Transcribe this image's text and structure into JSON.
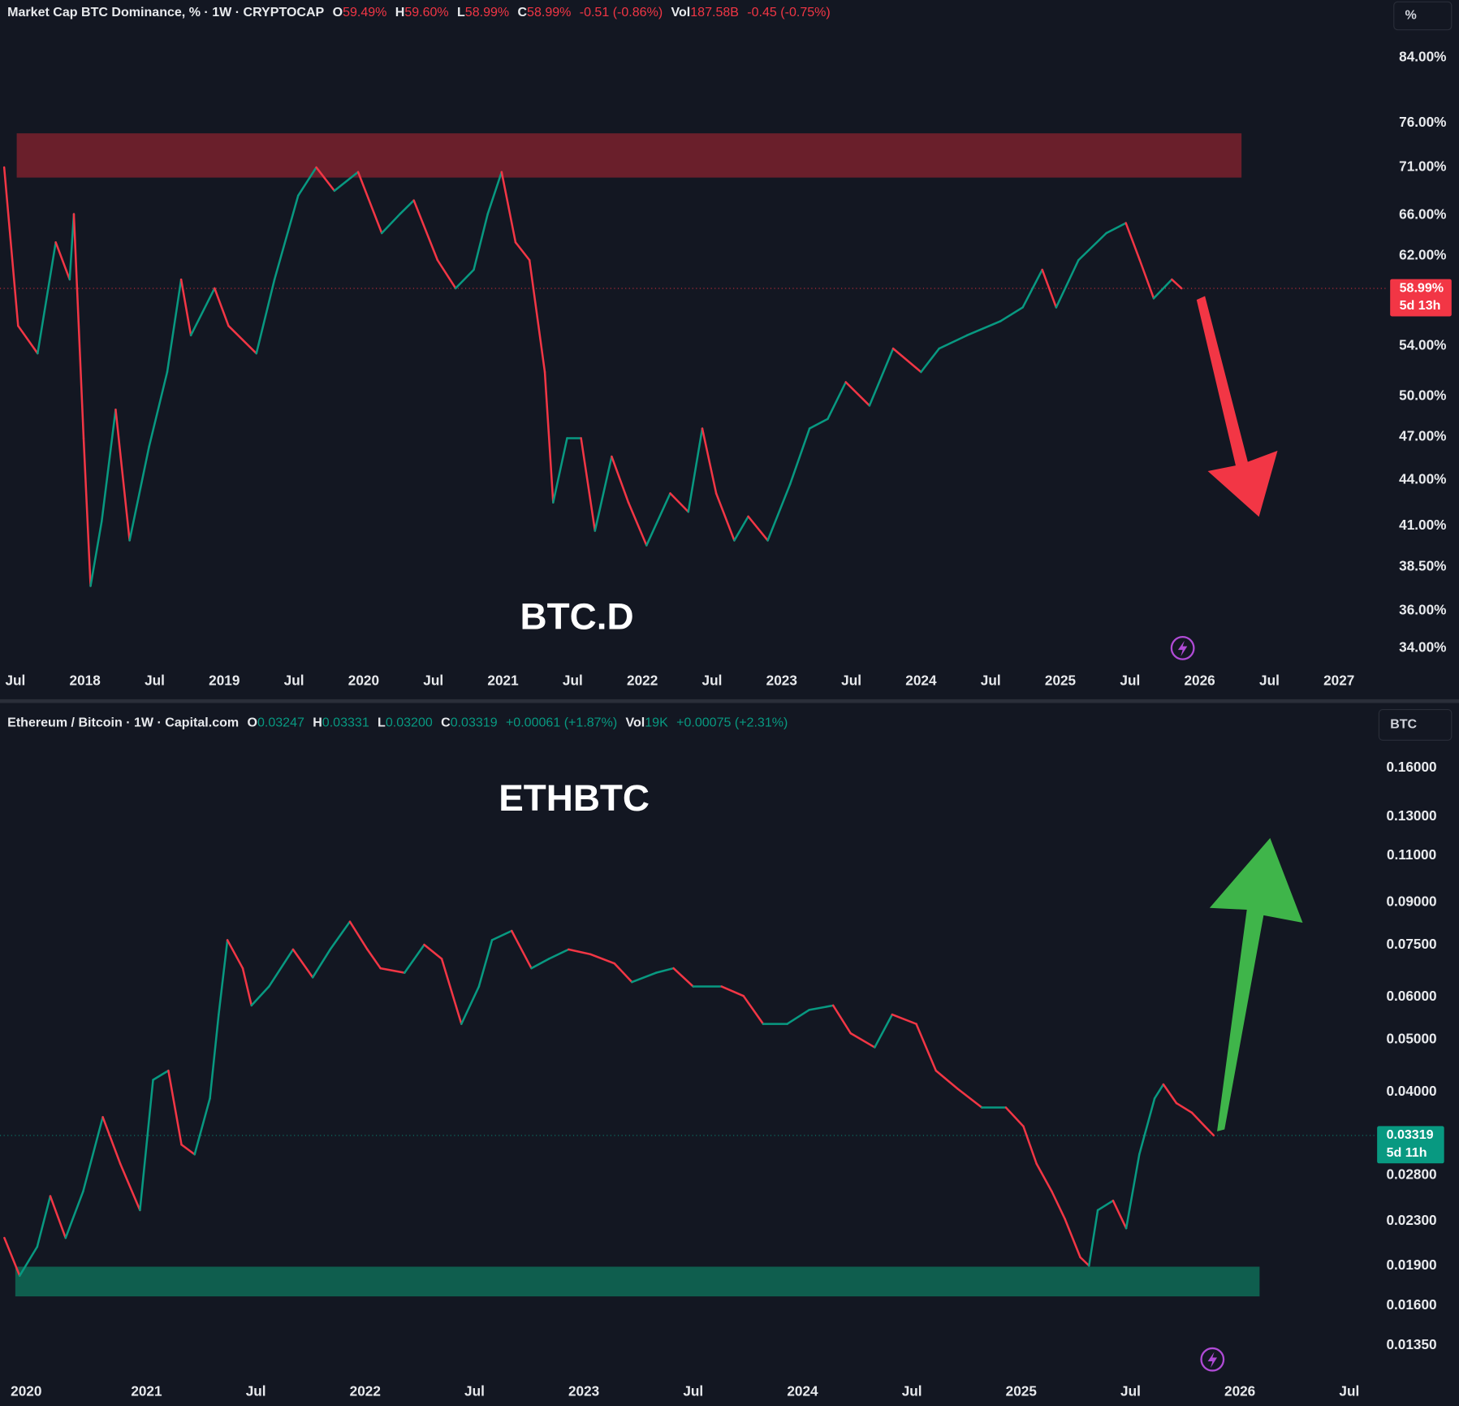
{
  "chart_data": [
    {
      "type": "line",
      "title": "Market Cap BTC Dominance, % · 1W · CRYPTOCAP",
      "ohlc": [
        {
          "key": "O",
          "value": "59.49%"
        },
        {
          "key": "H",
          "value": "59.60%"
        },
        {
          "key": "L",
          "value": "58.99%"
        },
        {
          "key": "C",
          "value": "58.99%"
        }
      ],
      "change": "-0.51 (-0.86%)",
      "volume": {
        "key": "Vol",
        "value": "187.58B",
        "change": "-0.45 (-0.75%)"
      },
      "text_color": "#f23645",
      "annotation": "BTC.D",
      "unit": "%",
      "log_scale": true,
      "up_color": "#089981",
      "down_color": "#f23645",
      "x": [
        2017.42,
        2017.52,
        2017.66,
        2017.79,
        2017.89,
        2017.92,
        2017.99,
        2018.04,
        2018.12,
        2018.22,
        2018.32,
        2018.46,
        2018.59,
        2018.69,
        2018.76,
        2018.93,
        2019.03,
        2019.23,
        2019.36,
        2019.53,
        2019.66,
        2019.79,
        2019.96,
        2020.13,
        2020.26,
        2020.36,
        2020.53,
        2020.66,
        2020.79,
        2020.89,
        2020.99,
        2021.09,
        2021.19,
        2021.3,
        2021.36,
        2021.46,
        2021.56,
        2021.66,
        2021.78,
        2021.9,
        2022.03,
        2022.2,
        2022.33,
        2022.43,
        2022.53,
        2022.66,
        2022.76,
        2022.9,
        2023.06,
        2023.2,
        2023.33,
        2023.46,
        2023.63,
        2023.8,
        2024.0,
        2024.13,
        2024.33,
        2024.57,
        2024.73,
        2024.87,
        2024.97,
        2025.13,
        2025.33,
        2025.47,
        2025.57,
        2025.67,
        2025.8,
        2025.87
      ],
      "values": [
        71.0,
        55.7,
        53.4,
        63.3,
        59.8,
        66.1,
        46.9,
        37.4,
        41.3,
        49.0,
        40.1,
        46.3,
        51.9,
        59.8,
        54.9,
        59.0,
        55.7,
        53.4,
        59.8,
        68.0,
        71.0,
        68.5,
        70.5,
        64.2,
        66.1,
        67.5,
        61.6,
        59.0,
        60.7,
        66.1,
        70.5,
        63.3,
        61.6,
        51.9,
        42.5,
        46.9,
        46.9,
        40.7,
        45.6,
        42.5,
        39.8,
        43.1,
        41.9,
        47.6,
        43.1,
        40.1,
        41.6,
        40.1,
        43.7,
        47.6,
        48.3,
        51.1,
        49.3,
        53.8,
        51.9,
        53.8,
        54.9,
        56.1,
        57.3,
        60.7,
        57.3,
        61.6,
        64.2,
        65.2,
        61.6,
        58.1,
        59.8,
        58.99
      ],
      "last_price": {
        "value": 58.99,
        "label": "58.99%",
        "countdown": "5d 13h",
        "color": "#f23645"
      },
      "zone": {
        "xlim": [
          2017.51,
          2026.3
        ],
        "ylim": [
          69.9,
          74.8
        ],
        "color": "#6a1f2b"
      },
      "xlim": [
        2017.39,
        2027.34
      ],
      "xticks": [
        {
          "value": 2017.5,
          "label": "Jul"
        },
        2018,
        {
          "value": 2018.5,
          "label": "Jul"
        },
        2019,
        {
          "value": 2019.5,
          "label": "Jul"
        },
        2020,
        {
          "value": 2020.5,
          "label": "Jul"
        },
        2021,
        {
          "value": 2021.5,
          "label": "Jul"
        },
        2022,
        {
          "value": 2022.5,
          "label": "Jul"
        },
        2023,
        {
          "value": 2023.5,
          "label": "Jul"
        },
        2024,
        {
          "value": 2024.5,
          "label": "Jul"
        },
        2025,
        {
          "value": 2025.5,
          "label": "Jul"
        },
        2026,
        {
          "value": 2026.5,
          "label": "Jul"
        },
        2027
      ],
      "ylim": [
        33.1,
        87.9
      ],
      "yticks": [
        {
          "value": 84,
          "label": "84.00%"
        },
        {
          "value": 76,
          "label": "76.00%"
        },
        {
          "value": 71,
          "label": "71.00%"
        },
        {
          "value": 66,
          "label": "66.00%"
        },
        {
          "value": 62,
          "label": "62.00%"
        },
        {
          "value": 54,
          "label": "54.00%"
        },
        {
          "value": 50,
          "label": "50.00%"
        },
        {
          "value": 47,
          "label": "47.00%"
        },
        {
          "value": 44,
          "label": "44.00%"
        },
        {
          "value": 41,
          "label": "41.00%"
        },
        {
          "value": 38.5,
          "label": "38.50%"
        },
        {
          "value": 36,
          "label": "36.00%"
        },
        {
          "value": 34,
          "label": "34.00%"
        }
      ]
    },
    {
      "type": "line",
      "title": "Ethereum / Bitcoin · 1W · Capital.com",
      "ohlc": [
        {
          "key": "O",
          "value": "0.03247"
        },
        {
          "key": "H",
          "value": "0.03331"
        },
        {
          "key": "L",
          "value": "0.03200"
        },
        {
          "key": "C",
          "value": "0.03319"
        }
      ],
      "change": "+0.00061 (+1.87%)",
      "volume": {
        "key": "Vol",
        "value": "19K",
        "change": "+0.00075 (+2.31%)"
      },
      "text_color": "#089981",
      "annotation": "ETHBTC",
      "unit": "BTC",
      "log_scale": true,
      "up_color": "#089981",
      "down_color": "#f23645",
      "x": [
        2020.35,
        2020.42,
        2020.5,
        2020.56,
        2020.63,
        2020.71,
        2020.8,
        2020.88,
        2020.97,
        2021.03,
        2021.1,
        2021.16,
        2021.22,
        2021.29,
        2021.33,
        2021.37,
        2021.44,
        2021.48,
        2021.56,
        2021.67,
        2021.76,
        2021.84,
        2021.93,
        2022.01,
        2022.07,
        2022.18,
        2022.27,
        2022.35,
        2022.44,
        2022.52,
        2022.58,
        2022.67,
        2022.76,
        2022.84,
        2022.93,
        2023.03,
        2023.14,
        2023.22,
        2023.33,
        2023.41,
        2023.5,
        2023.63,
        2023.73,
        2023.82,
        2023.93,
        2024.03,
        2024.14,
        2024.22,
        2024.33,
        2024.41,
        2024.52,
        2024.61,
        2024.71,
        2024.82,
        2024.93,
        2025.01,
        2025.07,
        2025.14,
        2025.2,
        2025.27,
        2025.31,
        2025.35,
        2025.42,
        2025.48,
        2025.54,
        2025.61,
        2025.65,
        2025.71,
        2025.78,
        2025.84,
        2025.88
      ],
      "values": [
        0.0214,
        0.0182,
        0.0206,
        0.0256,
        0.0214,
        0.0261,
        0.0359,
        0.0294,
        0.0241,
        0.0421,
        0.0438,
        0.0319,
        0.0306,
        0.0389,
        0.0557,
        0.0766,
        0.0679,
        0.0579,
        0.0628,
        0.0736,
        0.0653,
        0.0736,
        0.0829,
        0.0736,
        0.0679,
        0.0666,
        0.0751,
        0.0707,
        0.0535,
        0.0628,
        0.0766,
        0.0797,
        0.0679,
        0.0707,
        0.0736,
        0.0721,
        0.0693,
        0.064,
        0.0666,
        0.0679,
        0.0628,
        0.0628,
        0.0603,
        0.0535,
        0.0535,
        0.0568,
        0.0579,
        0.0514,
        0.0484,
        0.0557,
        0.0535,
        0.0438,
        0.0405,
        0.0374,
        0.0374,
        0.0345,
        0.0294,
        0.0261,
        0.0232,
        0.0197,
        0.019,
        0.0241,
        0.0251,
        0.0223,
        0.0306,
        0.0389,
        0.0413,
        0.0381,
        0.0366,
        0.0345,
        0.03319
      ],
      "last_price": {
        "value": 0.03319,
        "label": "0.03319",
        "countdown": "5d 11h",
        "color": "#089981"
      },
      "zone": {
        "xlim": [
          2020.4,
          2026.09
        ],
        "ylim": [
          0.01666,
          0.01892
        ],
        "color": "#0f5e4e"
      },
      "xlim": [
        2020.33,
        2026.67
      ],
      "xticks": [
        {
          "value": 2020.45,
          "label": "2020"
        },
        2021,
        {
          "value": 2021.5,
          "label": "Jul"
        },
        2022,
        {
          "value": 2022.5,
          "label": "Jul"
        },
        2023,
        {
          "value": 2023.5,
          "label": "Jul"
        },
        2024,
        {
          "value": 2024.5,
          "label": "Jul"
        },
        2025,
        {
          "value": 2025.5,
          "label": "Jul"
        },
        2026,
        {
          "value": 2026.5,
          "label": "Jul"
        }
      ],
      "ylim": [
        0.01198,
        0.1767
      ],
      "yticks": [
        {
          "value": 0.16,
          "label": "0.16000"
        },
        {
          "value": 0.13,
          "label": "0.13000"
        },
        {
          "value": 0.11,
          "label": "0.11000"
        },
        {
          "value": 0.09,
          "label": "0.09000"
        },
        {
          "value": 0.075,
          "label": "0.07500"
        },
        {
          "value": 0.06,
          "label": "0.06000"
        },
        {
          "value": 0.05,
          "label": "0.05000"
        },
        {
          "value": 0.04,
          "label": "0.04000"
        },
        {
          "value": 0.028,
          "label": "0.02800"
        },
        {
          "value": 0.023,
          "label": "0.02300"
        },
        {
          "value": 0.019,
          "label": "0.01900"
        },
        {
          "value": 0.016,
          "label": "0.01600"
        },
        {
          "value": 0.0135,
          "label": "0.01350"
        }
      ]
    }
  ]
}
